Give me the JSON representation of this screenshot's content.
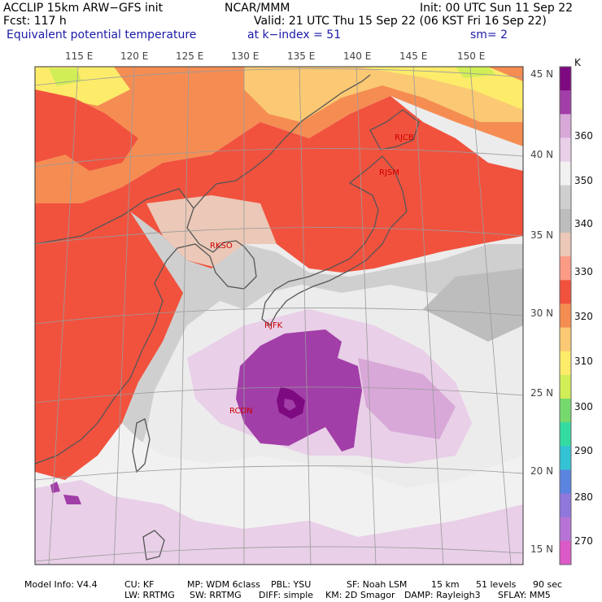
{
  "header": {
    "left1": "ACCLIP 15km ARW−GFS init",
    "left2": "Fcst:  117 h",
    "left3": "Equivalent potential temperature",
    "center": "NCAR/MMM",
    "init": "Init: 00 UTC Sun 11 Sep 22",
    "valid": "Valid: 21 UTC Thu 15 Sep 22 (06 KST Fri 16 Sep 22)",
    "kindex": "at k−index =  51",
    "sm": "sm= 2"
  },
  "lon_labels": [
    "115 E",
    "120 E",
    "125 E",
    "130 E",
    "135 E",
    "140 E",
    "145 E",
    "150 E"
  ],
  "lat_labels": [
    "45 N",
    "40 N",
    "35 N",
    "30 N",
    "25 N",
    "20 N",
    "15 N"
  ],
  "stations": [
    {
      "code": "RJCB"
    },
    {
      "code": "RJSM"
    },
    {
      "code": "RKSO"
    },
    {
      "code": "RJFK"
    },
    {
      "code": "RCDN"
    }
  ],
  "colorbar": {
    "unit": "K",
    "levels": [
      {
        "value": "360",
        "color": "#e9cfe8"
      },
      {
        "value": "350",
        "color": "#cfcfcf"
      },
      {
        "value": "340",
        "color": "#ebc8b7"
      },
      {
        "value": "330",
        "color": "#f1523e"
      },
      {
        "value": "320",
        "color": "#f58d53"
      },
      {
        "value": "310",
        "color": "#fbc973"
      },
      {
        "value": "300",
        "color": "#d2ee57"
      },
      {
        "value": "290",
        "color": "#34dca2"
      },
      {
        "value": "280",
        "color": "#5a84df"
      },
      {
        "value": "270",
        "color": "#b773d6"
      }
    ],
    "colors": [
      "#7d0a80",
      "#a23ea8",
      "#d8a8d8",
      "#e9cfe8",
      "#f1f1f1",
      "#cfcfcf",
      "#bdbdbd",
      "#ebc8b7",
      "#fb9b85",
      "#f1523e",
      "#f58d53",
      "#fbc973",
      "#fcec6a",
      "#d2ee57",
      "#76d96d",
      "#34dca2",
      "#33c3d4",
      "#5a84df",
      "#9077dc",
      "#b773d6",
      "#dc59c8"
    ]
  },
  "footer": {
    "line1": [
      "Model Info: V4.4",
      "CU: KF",
      "MP: WDM 6class",
      "PBL: YSU",
      "SF: Noah LSM",
      "15 km",
      "51 levels",
      "90 sec"
    ],
    "line2": [
      "LW: RRTMG",
      "SW: RRTMG",
      "DIFF: simple",
      "KM: 2D Smagor",
      "DAMP: Rayleigh3",
      "SFLAY: MM5"
    ]
  }
}
